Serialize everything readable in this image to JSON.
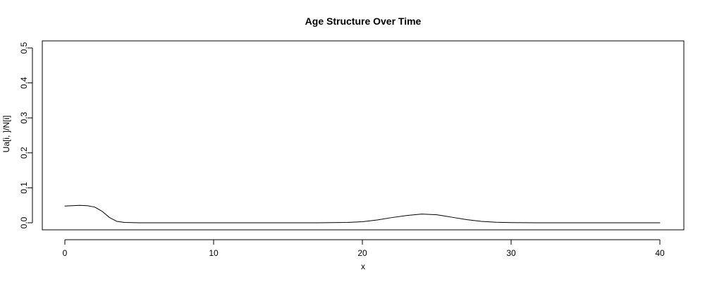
{
  "chart_data": {
    "type": "line",
    "title": "Age Structure Over Time",
    "xlabel": "x",
    "ylabel": "Ua[i, ]/N[i]",
    "xlim": [
      0,
      40
    ],
    "ylim": [
      0,
      0.5
    ],
    "xticks": [
      0,
      10,
      20,
      30,
      40
    ],
    "xtick_labels": [
      "0",
      "10",
      "20",
      "30",
      "40"
    ],
    "yticks": [
      0.0,
      0.1,
      0.2,
      0.3,
      0.4,
      0.5
    ],
    "ytick_labels": [
      "0.0",
      "0.1",
      "0.2",
      "0.3",
      "0.4",
      "0.5"
    ],
    "grid": false,
    "legend": "none",
    "line_color": "#000000",
    "series": [
      {
        "x": [
          0,
          0.5,
          1,
          1.5,
          2,
          2.5,
          3,
          3.5,
          4,
          5,
          6,
          8,
          10,
          12,
          14,
          16,
          17,
          18,
          19,
          20,
          21,
          22,
          23,
          24,
          25,
          26,
          27,
          28,
          29,
          30,
          32,
          35,
          40
        ],
        "values": [
          0.048,
          0.049,
          0.05,
          0.049,
          0.045,
          0.033,
          0.015,
          0.004,
          0.001,
          0.0,
          0.0,
          0.0,
          0.0,
          0.0,
          0.0,
          0.0,
          0.0,
          0.0005,
          0.001,
          0.003,
          0.008,
          0.015,
          0.021,
          0.025,
          0.023,
          0.016,
          0.009,
          0.004,
          0.0015,
          0.0005,
          0.0,
          0.0,
          0.0
        ]
      }
    ]
  }
}
